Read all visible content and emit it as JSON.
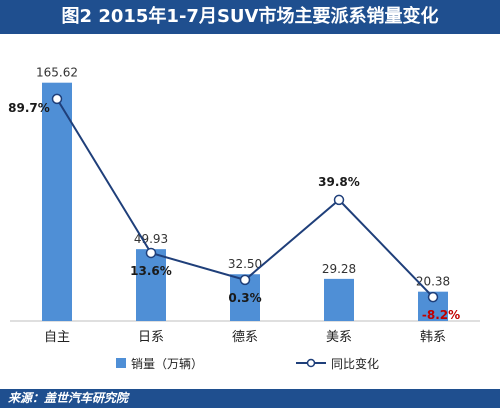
{
  "title": "图2  2015年1-7月SUV市场主要派系销量变化",
  "source": "来源：盖世汽车研究院",
  "colors": {
    "title_bg": "#1f4f8f",
    "bar": "#4f8fd6",
    "line": "#1f3f7a",
    "growth_label": "#1a1a1a",
    "negative_label": "#c00000",
    "axis": "#bfbfbf"
  },
  "chart_data": {
    "type": "bar",
    "categories": [
      "自主",
      "日系",
      "德系",
      "美系",
      "韩系"
    ],
    "series": [
      {
        "name": "销量（万辆）",
        "type": "bar",
        "values": [
          165.62,
          49.93,
          32.5,
          29.28,
          20.38
        ],
        "labels": [
          "165.62",
          "49.93",
          "32.50",
          "29.28",
          "20.38"
        ]
      },
      {
        "name": "同比变化",
        "type": "line",
        "values": [
          89.7,
          13.6,
          0.3,
          39.8,
          -8.2
        ],
        "labels": [
          "89.7%",
          "13.6%",
          "0.3%",
          "39.8%",
          "-8.2%"
        ]
      }
    ],
    "ylim": [
      0,
      180
    ],
    "y2lim": [
      -20,
      100
    ],
    "grid": false,
    "legend": "bottom"
  }
}
